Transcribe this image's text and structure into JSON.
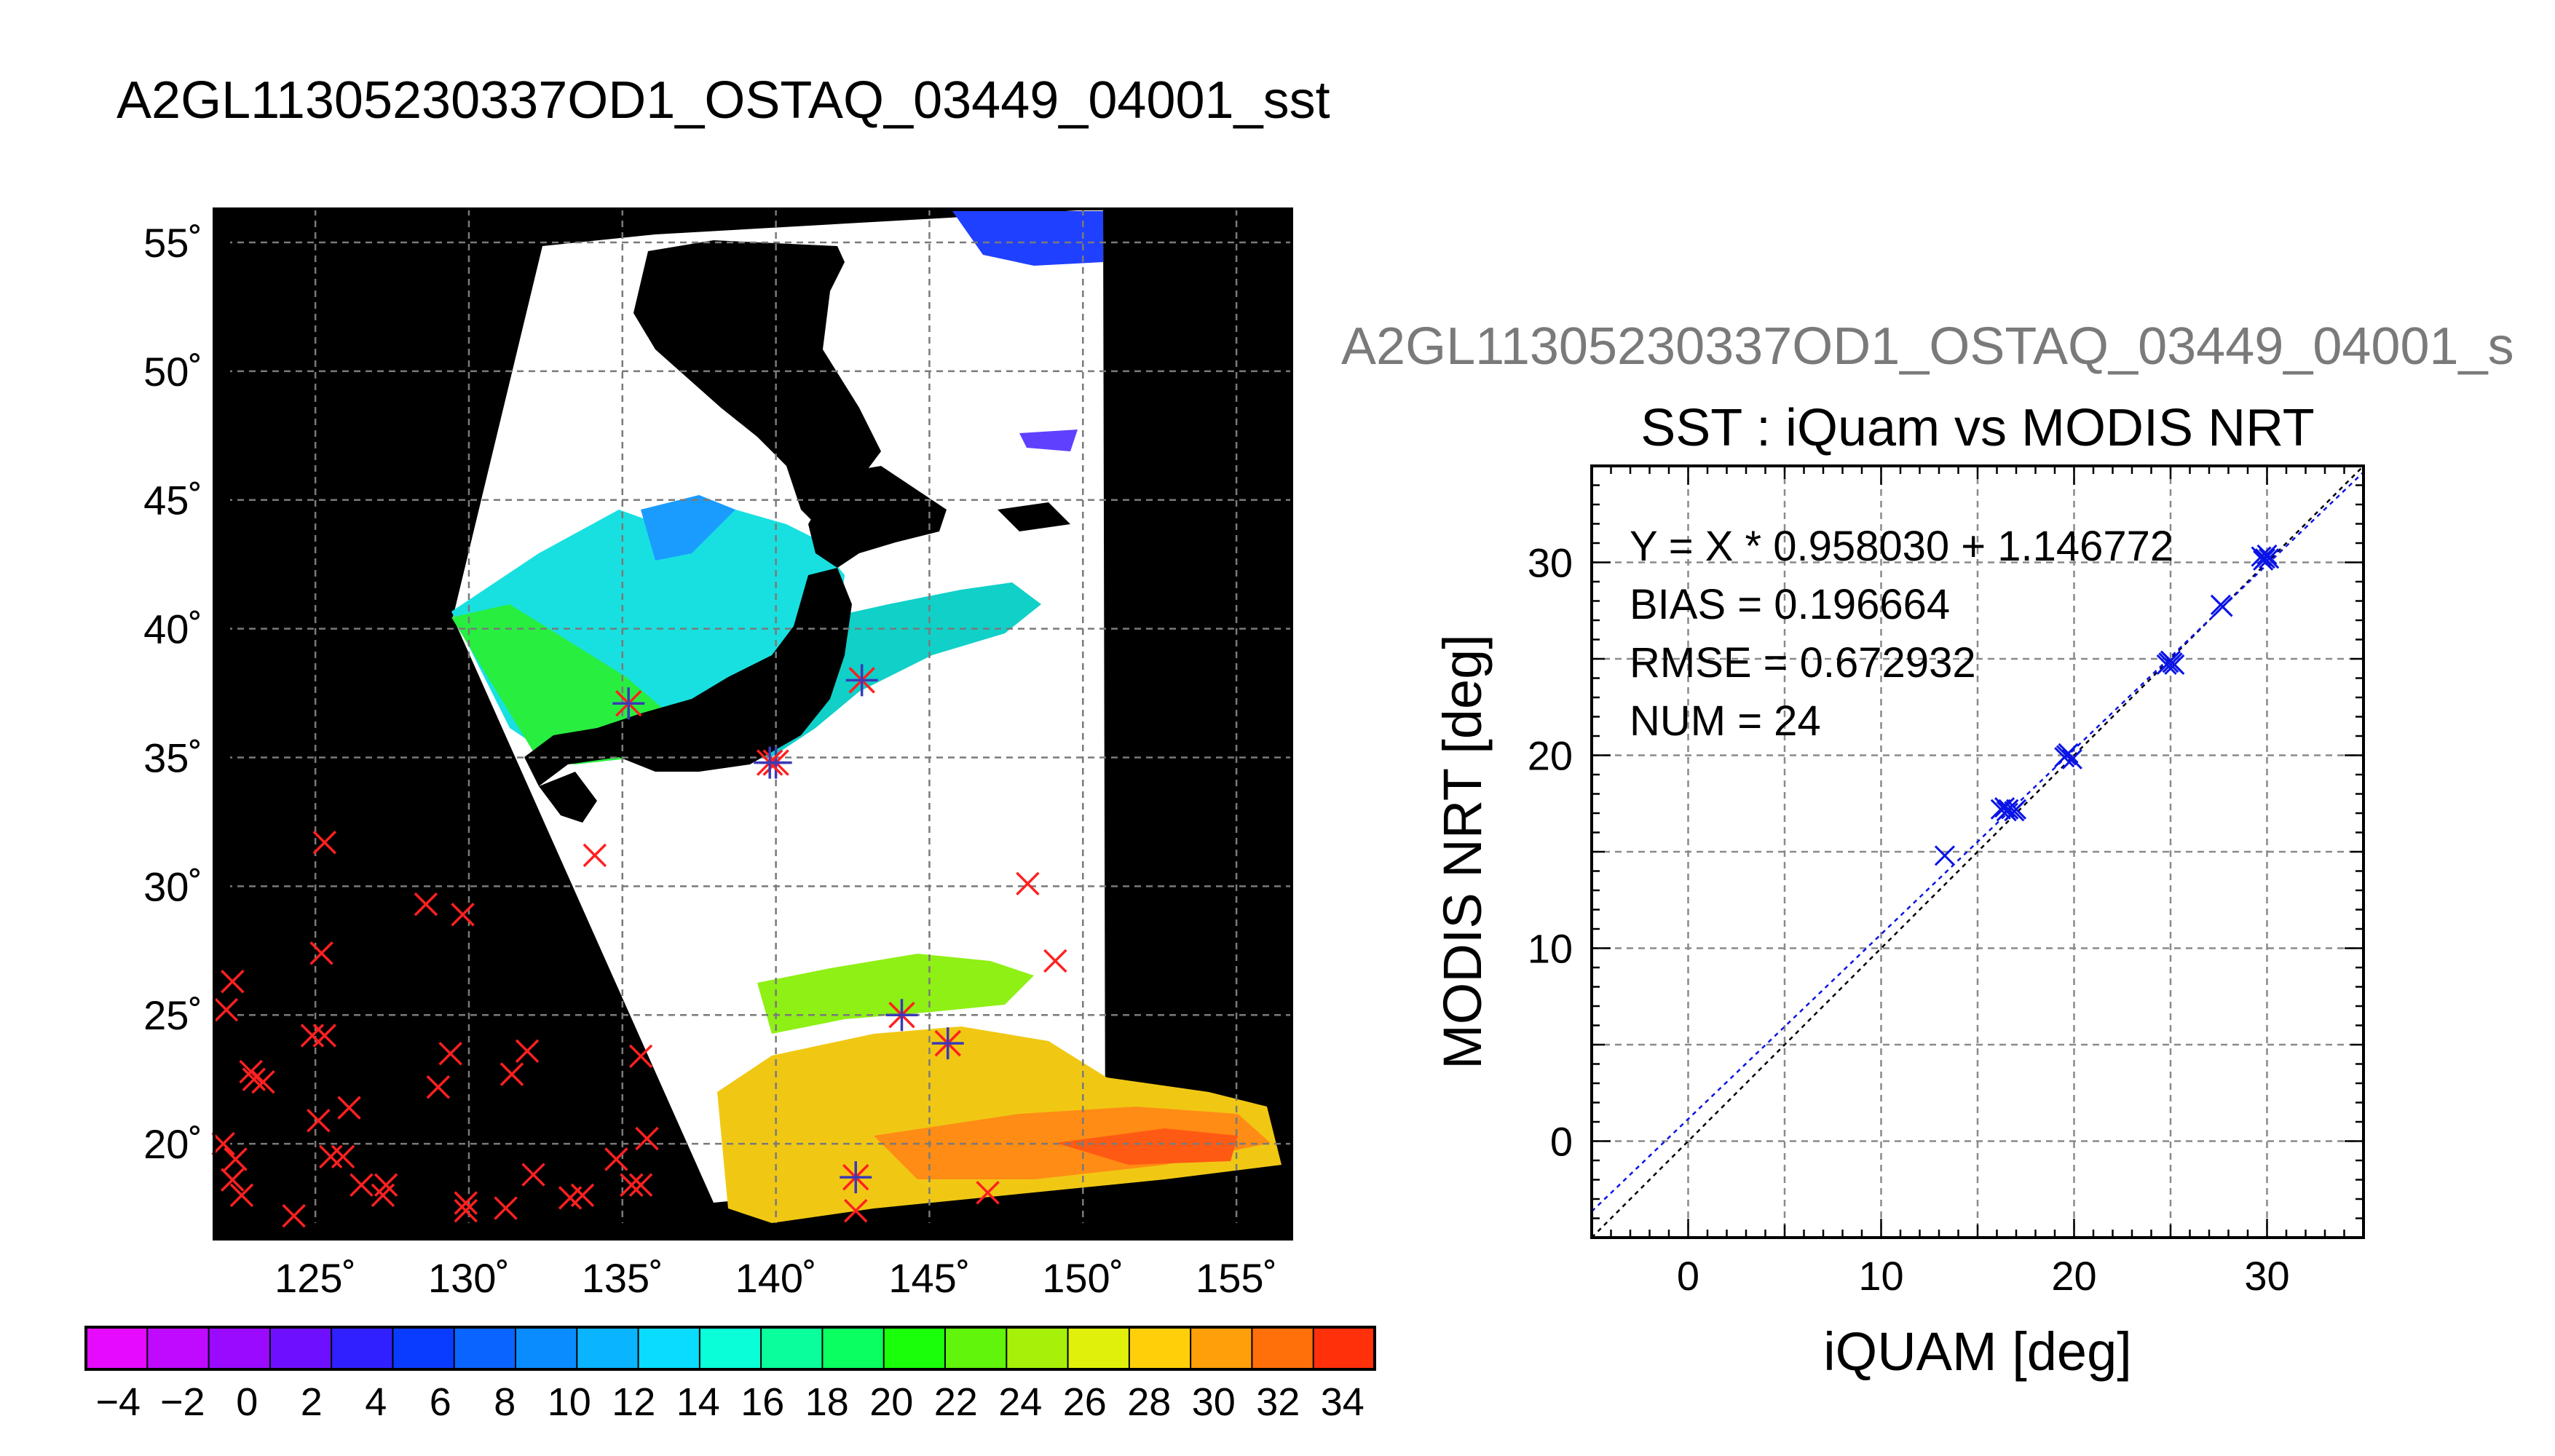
{
  "page": {
    "main_title": "A2GL11305230337OD1_OSTAQ_03449_04001_sst"
  },
  "map": {
    "lon_ticks": [
      "125˚",
      "130˚",
      "135˚",
      "140˚",
      "145˚",
      "150˚",
      "155˚"
    ],
    "lat_ticks": [
      "55˚",
      "50˚",
      "45˚",
      "40˚",
      "35˚",
      "30˚",
      "25˚",
      "20˚"
    ],
    "lon_values": [
      125,
      130,
      135,
      140,
      145,
      150,
      155
    ],
    "lat_values": [
      55,
      50,
      45,
      40,
      35,
      30,
      25,
      20
    ],
    "lon_range": [
      121.7,
      156.8
    ],
    "lat_range": [
      16.3,
      56.3
    ],
    "background_color": "#000000",
    "cloud_color": "#ffffff",
    "buoy_marker_color": "#ff2020",
    "matched_marker_color": "#ff2020",
    "matched_star_color": "#3a3ab8",
    "buoys": [
      [
        122.3,
        26.3
      ],
      [
        122.1,
        25.2
      ],
      [
        125.3,
        31.7
      ],
      [
        125.2,
        27.4
      ],
      [
        124.9,
        24.2
      ],
      [
        125.3,
        24.2
      ],
      [
        122.9,
        22.8
      ],
      [
        123.3,
        22.4
      ],
      [
        123.0,
        22.5
      ],
      [
        122.0,
        20.0
      ],
      [
        122.4,
        19.4
      ],
      [
        122.3,
        18.6
      ],
      [
        122.6,
        18.0
      ],
      [
        124.3,
        17.2
      ],
      [
        125.1,
        20.9
      ],
      [
        125.5,
        19.5
      ],
      [
        125.9,
        19.5
      ],
      [
        126.1,
        21.4
      ],
      [
        126.5,
        18.4
      ],
      [
        127.2,
        18.0
      ],
      [
        127.3,
        18.4
      ],
      [
        128.6,
        29.3
      ],
      [
        129.8,
        28.9
      ],
      [
        129.4,
        23.5
      ],
      [
        129.0,
        22.2
      ],
      [
        131.4,
        22.7
      ],
      [
        131.9,
        23.6
      ],
      [
        129.9,
        17.7
      ],
      [
        129.9,
        17.4
      ],
      [
        131.2,
        17.5
      ],
      [
        132.1,
        18.8
      ],
      [
        133.3,
        17.9
      ],
      [
        133.7,
        18.0
      ],
      [
        134.8,
        19.4
      ],
      [
        135.3,
        18.4
      ],
      [
        135.6,
        18.4
      ],
      [
        135.6,
        23.4
      ],
      [
        135.8,
        20.2
      ],
      [
        134.1,
        31.2
      ],
      [
        142.6,
        17.4
      ],
      [
        146.9,
        18.1
      ],
      [
        148.2,
        30.1
      ],
      [
        149.1,
        27.1
      ]
    ],
    "matched": [
      [
        135.2,
        37.1
      ],
      [
        140.0,
        34.8
      ],
      [
        142.8,
        38.0
      ],
      [
        139.8,
        34.8
      ],
      [
        144.1,
        25.0
      ],
      [
        145.6,
        23.9
      ],
      [
        142.6,
        18.7
      ]
    ]
  },
  "colorbar": {
    "min": -5,
    "max": 35,
    "labels": [
      "−4",
      "−2",
      "0",
      "2",
      "4",
      "6",
      "8",
      "10",
      "12",
      "14",
      "16",
      "18",
      "20",
      "22",
      "24",
      "26",
      "28",
      "30",
      "32",
      "34"
    ],
    "label_values": [
      -4,
      -2,
      0,
      2,
      4,
      6,
      8,
      10,
      12,
      14,
      16,
      18,
      20,
      22,
      24,
      26,
      28,
      30,
      32,
      34
    ],
    "colors": [
      "#e60aff",
      "#c00aff",
      "#9a0aff",
      "#6e10ff",
      "#3020ff",
      "#0a3cff",
      "#0a64ff",
      "#0a8cff",
      "#0ab4ff",
      "#0adcff",
      "#0affd8",
      "#0aff9c",
      "#0aff60",
      "#1aff0a",
      "#60f50a",
      "#a6f00a",
      "#e0f00a",
      "#ffd00a",
      "#ffa00a",
      "#ff700a",
      "#ff300a"
    ]
  },
  "scatter": {
    "file_title": "A2GL11305230337OD1_OSTAQ_03449_04001_s",
    "title": "SST : iQuam vs MODIS NRT",
    "stats": {
      "fit": "Y = X * 0.958030 + 1.146772",
      "bias": "BIAS = 0.196664",
      "rmse": "RMSE = 0.672932",
      "num": "NUM = 24"
    },
    "fit_slope": 0.95803,
    "fit_intercept": 1.146772,
    "marker_color": "#0a14e6"
  },
  "chart_data": {
    "type": "scatter",
    "title": "SST : iQuam vs MODIS NRT",
    "xlabel": "iQUAM [deg]",
    "ylabel": "MODIS NRT [deg]",
    "xlim": [
      -5,
      35
    ],
    "ylim": [
      -5,
      35
    ],
    "x_ticks": [
      0,
      10,
      20,
      30
    ],
    "y_ticks": [
      0,
      10,
      20,
      30
    ],
    "grid": true,
    "legend": "none",
    "series": [
      {
        "points": [
          [
            13.3,
            14.8
          ],
          [
            16.2,
            17.2
          ],
          [
            16.4,
            17.3
          ],
          [
            16.5,
            17.1
          ],
          [
            16.9,
            17.1
          ],
          [
            17.0,
            17.2
          ],
          [
            19.5,
            19.9
          ],
          [
            19.7,
            20.1
          ],
          [
            19.9,
            19.8
          ],
          [
            19.6,
            20.0
          ],
          [
            24.8,
            24.7
          ],
          [
            24.9,
            24.8
          ],
          [
            25.0,
            24.9
          ],
          [
            25.1,
            24.8
          ],
          [
            25.2,
            24.7
          ],
          [
            27.6,
            27.8
          ],
          [
            27.7,
            27.7
          ],
          [
            29.7,
            30.3
          ],
          [
            29.9,
            30.2
          ],
          [
            30.0,
            30.4
          ],
          [
            30.1,
            30.2
          ],
          [
            29.8,
            30.1
          ],
          [
            25.0,
            24.9
          ],
          [
            16.6,
            17.2
          ]
        ]
      }
    ]
  }
}
